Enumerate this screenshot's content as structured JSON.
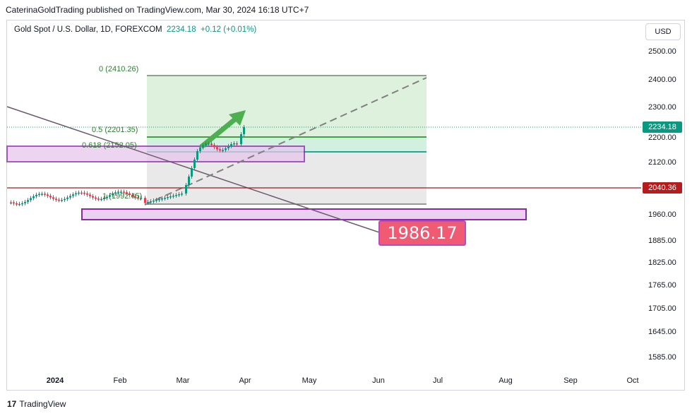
{
  "header": {
    "publisher_line": "CaterinaGoldTrading published on TradingView.com, Mar 30, 2024 16:18 UTC+7"
  },
  "legend": {
    "symbol": "Gold Spot / U.S. Dollar, 1D, FOREXCOM",
    "price": "2234.18",
    "change": "+0.12 (+0.01%)"
  },
  "currency_button": "USD",
  "y_axis": {
    "ticks": [
      "2500.00",
      "2400.00",
      "2300.00",
      "2200.00",
      "2120.00",
      "1960.00",
      "1885.00",
      "1825.00",
      "1765.00",
      "1705.00",
      "1645.00",
      "1585.00"
    ],
    "current_price_badge": "2234.18",
    "line_price_badge": "2040.36"
  },
  "x_axis": {
    "ticks": [
      "2024",
      "Feb",
      "Mar",
      "Apr",
      "May",
      "Jun",
      "Jul",
      "Aug",
      "Sep",
      "Oct"
    ]
  },
  "fib": {
    "levels": [
      {
        "label": "0 (2410.26)"
      },
      {
        "label": "0.5 (2201.35)"
      },
      {
        "label": "0.618 (2152.05)"
      },
      {
        "label": "1 (1992.45)"
      }
    ]
  },
  "annotation": {
    "target_price": "1986.17"
  },
  "footer": {
    "brand": "TradingView",
    "brand_logo": "17"
  },
  "colors": {
    "up": "#089981",
    "down": "#f23645",
    "fib_fill": "#c8e6c9",
    "zone_fill": "#e1bee7",
    "zone_border": "#9c27b0",
    "badge_current": "#089981",
    "badge_line": "#b71c1c"
  }
}
